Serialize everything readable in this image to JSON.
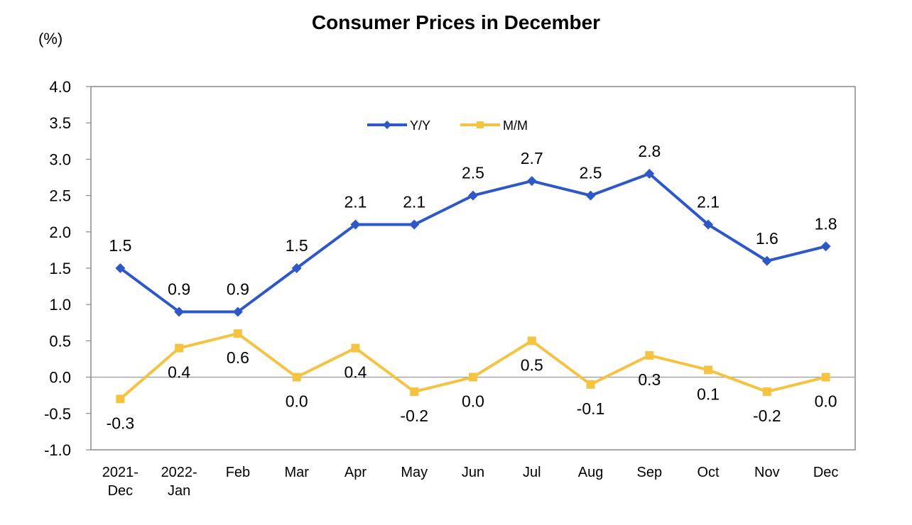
{
  "chart_data": {
    "type": "line",
    "title": "Consumer Prices in December",
    "ylabel": "(%)",
    "xlabel": "",
    "ylim": [
      -1.0,
      4.0
    ],
    "yticks": [
      "4.0",
      "3.5",
      "3.0",
      "2.5",
      "2.0",
      "1.5",
      "1.0",
      "0.5",
      "0.0",
      "-0.5",
      "-1.0"
    ],
    "categories": [
      [
        "2021-",
        "Dec"
      ],
      [
        "2022-",
        "Jan"
      ],
      [
        "Feb"
      ],
      [
        "Mar"
      ],
      [
        "Apr"
      ],
      [
        "May"
      ],
      [
        "Jun"
      ],
      [
        "Jul"
      ],
      [
        "Aug"
      ],
      [
        "Sep"
      ],
      [
        "Oct"
      ],
      [
        "Nov"
      ],
      [
        "Dec"
      ]
    ],
    "series": [
      {
        "name": "Y/Y",
        "color": "#2e57c8",
        "marker": "diamond",
        "values": [
          1.5,
          0.9,
          0.9,
          1.5,
          2.1,
          2.1,
          2.5,
          2.7,
          2.5,
          2.8,
          2.1,
          1.6,
          1.8
        ],
        "labels": [
          "1.5",
          "0.9",
          "0.9",
          "1.5",
          "2.1",
          "2.1",
          "2.5",
          "2.7",
          "2.5",
          "2.8",
          "2.1",
          "1.6",
          "1.8"
        ],
        "label_pos": "above"
      },
      {
        "name": "M/M",
        "color": "#f5c342",
        "marker": "square",
        "values": [
          -0.3,
          0.4,
          0.6,
          0.0,
          0.4,
          -0.2,
          0.0,
          0.5,
          -0.1,
          0.3,
          0.1,
          -0.2,
          0.0
        ],
        "labels": [
          "-0.3",
          "0.4",
          "0.6",
          "0.0",
          "0.4",
          "-0.2",
          "0.0",
          "0.5",
          "-0.1",
          "0.3",
          "0.1",
          "-0.2",
          "0.0"
        ],
        "label_pos": "below"
      }
    ],
    "legend": "top-center",
    "grid": false
  }
}
